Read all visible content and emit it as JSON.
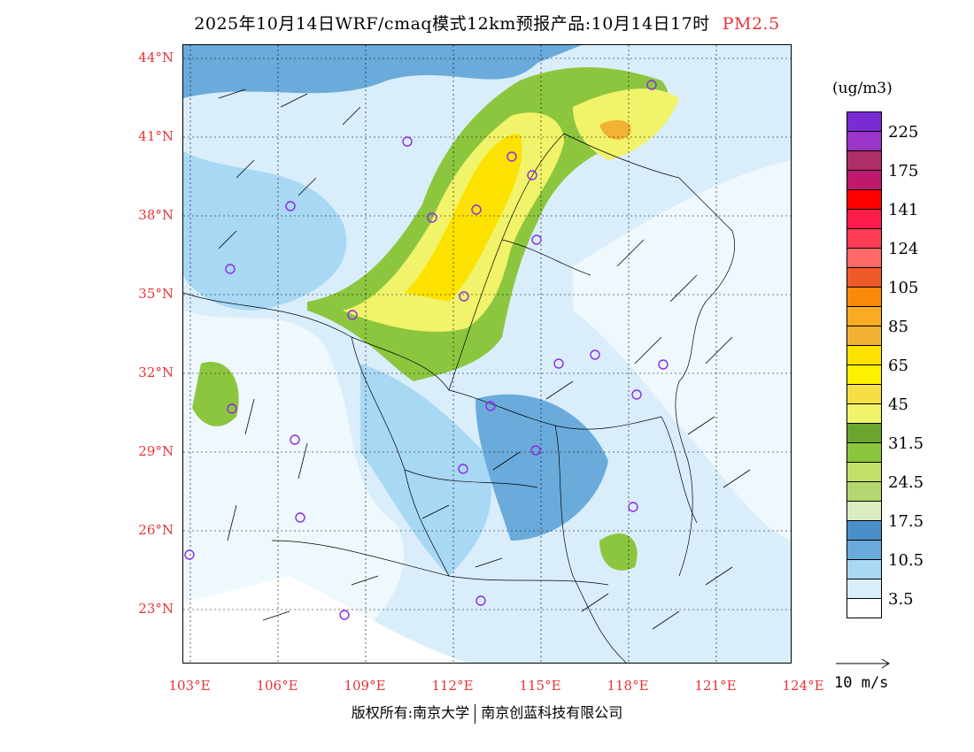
{
  "title": "2025年10月14日WRF/cmaq模式12km预报产品:10月14日17时",
  "pollutant": "PM2.5",
  "lat_labels": [
    "44°N",
    "41°N",
    "38°N",
    "35°N",
    "32°N",
    "29°N",
    "26°N",
    "23°N"
  ],
  "lon_labels": [
    "103°E",
    "106°E",
    "109°E",
    "112°E",
    "115°E",
    "118°E",
    "121°E",
    "124°E"
  ],
  "colorbar": {
    "unit": "(ug/m3)",
    "colors": [
      "#7a2bd6",
      "#9b34c8",
      "#b02e67",
      "#c0186f",
      "#ff0000",
      "#ff1c4a",
      "#ff3d55",
      "#ff6a66",
      "#f05a28",
      "#fb8a0c",
      "#fbaa24",
      "#f2b233",
      "#fde200",
      "#fff000",
      "#f4df46",
      "#f1f36a",
      "#6aa52f",
      "#8cc63f",
      "#c2e06a",
      "#b4d670",
      "#dcecc0",
      "#4a8fc9",
      "#6aabdb",
      "#a8d8f4",
      "#d9eefa",
      "#ffffff"
    ],
    "labels": [
      "225",
      "175",
      "141",
      "124",
      "105",
      "85",
      "65",
      "45",
      "31.5",
      "24.5",
      "17.5",
      "10.5",
      "3.5"
    ]
  },
  "wind_key": "10 m/s",
  "footer": {
    "left": "版权所有:南京大学",
    "right": "南京创蓝科技有限公司"
  }
}
